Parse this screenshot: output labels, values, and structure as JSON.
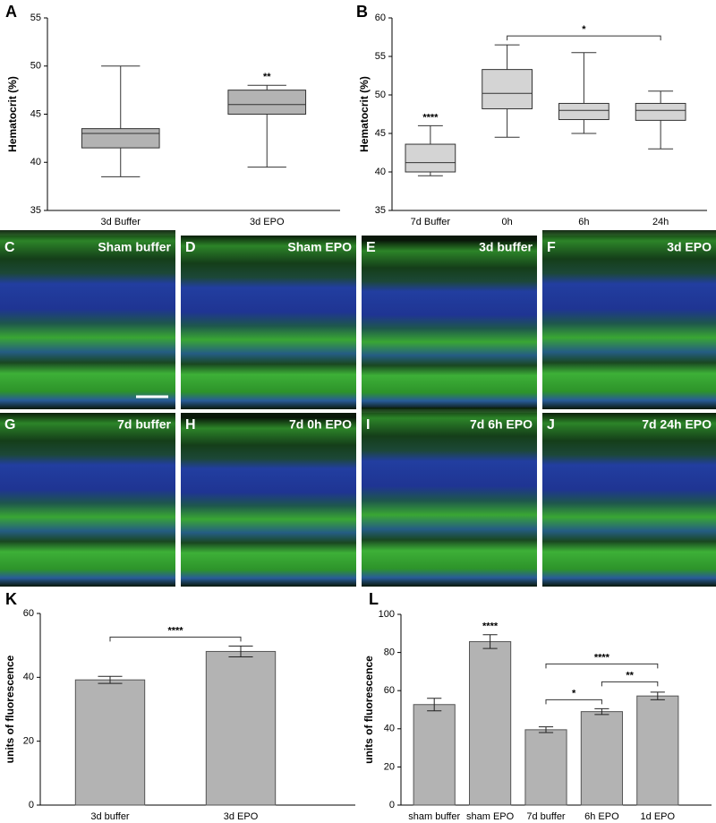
{
  "chart_data": [
    {
      "type": "box",
      "panel": "A",
      "ylabel": "Hematocrit  (%)",
      "categories": [
        "3d Buffer",
        "3d EPO"
      ],
      "boxes": [
        {
          "min": 38.5,
          "q1": 41.5,
          "median": 43,
          "q3": 43.5,
          "max": 50
        },
        {
          "min": 39.5,
          "q1": 45,
          "median": 46,
          "q3": 47.5,
          "max": 48
        }
      ],
      "color": "#b3b3b3",
      "ylim": [
        35,
        55
      ],
      "yticks": [
        35,
        40,
        45,
        50,
        55
      ],
      "annotations": [
        {
          "label": "**",
          "category": "3d EPO"
        }
      ]
    },
    {
      "type": "box",
      "panel": "B",
      "ylabel": "Hematocrit  (%)",
      "categories": [
        "7d Buffer",
        "0h",
        "6h",
        "24h"
      ],
      "boxes": [
        {
          "min": 39.5,
          "q1": 40,
          "median": 41.2,
          "q3": 43.6,
          "max": 46
        },
        {
          "min": 44.5,
          "q1": 48.2,
          "median": 50.2,
          "q3": 53.3,
          "max": 56.5
        },
        {
          "min": 45,
          "q1": 46.8,
          "median": 48,
          "q3": 48.9,
          "max": 55.5
        },
        {
          "min": 43,
          "q1": 46.7,
          "median": 48,
          "q3": 48.9,
          "max": 50.5
        }
      ],
      "color": "#d4d4d4",
      "ylim": [
        35,
        60
      ],
      "yticks": [
        35,
        40,
        45,
        50,
        55,
        60
      ],
      "annotations": [
        {
          "label": "****",
          "category": "7d Buffer"
        }
      ],
      "brackets": [
        {
          "label": "*",
          "from": "0h",
          "to": "24h"
        }
      ]
    },
    {
      "type": "bar",
      "panel": "K",
      "ylabel": "units of fluorescence",
      "categories": [
        "3d buffer",
        "3d EPO"
      ],
      "values": [
        39.2,
        48.1
      ],
      "errors": [
        1.1,
        1.7
      ],
      "color": "#b3b3b3",
      "ylim": [
        0,
        60
      ],
      "yticks": [
        0,
        20,
        40,
        60
      ],
      "brackets": [
        {
          "label": "****",
          "from": "3d buffer",
          "to": "3d EPO"
        }
      ]
    },
    {
      "type": "bar",
      "panel": "L",
      "ylabel": "units of fluorescence",
      "categories": [
        "sham buffer",
        "sham EPO",
        "7d buffer",
        "6h EPO",
        "1d EPO"
      ],
      "values": [
        52.7,
        85.7,
        39.5,
        49,
        57.2
      ],
      "errors": [
        3.3,
        3.6,
        1.5,
        1.5,
        2
      ],
      "color": "#b3b3b3",
      "ylim": [
        0,
        100
      ],
      "yticks": [
        0,
        20,
        40,
        60,
        80,
        100
      ],
      "annotations": [
        {
          "label": "****",
          "category": "sham EPO"
        }
      ],
      "brackets": [
        {
          "label": "*",
          "from": "7d buffer",
          "to": "6h EPO"
        },
        {
          "label": "**",
          "from": "6h EPO",
          "to": "1d EPO"
        },
        {
          "label": "****",
          "from": "7d buffer",
          "to": "1d EPO"
        }
      ]
    }
  ],
  "images": [
    {
      "panel": "C",
      "label": "Sham buffer"
    },
    {
      "panel": "D",
      "label": "Sham EPO"
    },
    {
      "panel": "E",
      "label": "3d buffer"
    },
    {
      "panel": "F",
      "label": "3d EPO"
    },
    {
      "panel": "G",
      "label": "7d buffer"
    },
    {
      "panel": "H",
      "label": "7d 0h EPO"
    },
    {
      "panel": "I",
      "label": "7d 6h EPO"
    },
    {
      "panel": "J",
      "label": "7d 24h EPO"
    }
  ]
}
